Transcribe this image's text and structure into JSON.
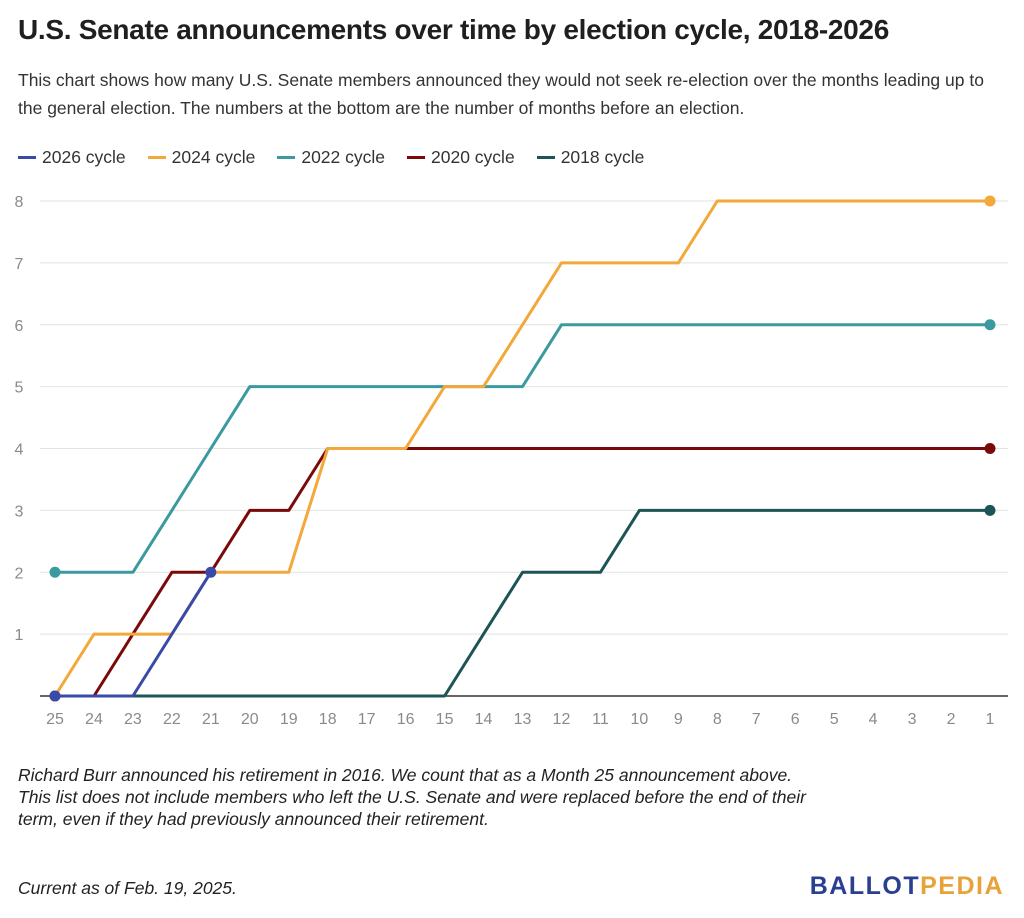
{
  "title": "U.S. Senate announcements over time by election cycle, 2018-2026",
  "subtitle": "This chart shows how many U.S. Senate members announced they would not seek re-election over the months leading up to the general election. The numbers at the bottom are the number of months before an election.",
  "notes": [
    "Richard Burr announced his retirement in 2016. We count that as a Month 25 announcement above.",
    "This list does not include members who left the U.S. Senate and were replaced before the end of their term, even if they had previously announced their retirement."
  ],
  "footer": "Current as of Feb. 19, 2025.",
  "logo": {
    "part1": "BALLOT",
    "part2": "PEDIA",
    "color1": "#2a3f8f",
    "color2": "#e8a23a"
  },
  "chart_data": {
    "type": "line",
    "xlabel": "",
    "ylabel": "",
    "categories": [
      "25",
      "24",
      "23",
      "22",
      "21",
      "20",
      "19",
      "18",
      "17",
      "16",
      "15",
      "14",
      "13",
      "12",
      "11",
      "10",
      "9",
      "8",
      "7",
      "6",
      "5",
      "4",
      "3",
      "2",
      "1"
    ],
    "ylim": [
      0,
      8
    ],
    "yticks": [
      "1",
      "2",
      "3",
      "4",
      "5",
      "6",
      "7",
      "8"
    ],
    "grid": true,
    "legend_position": "top",
    "series": [
      {
        "name": "2026 cycle",
        "color": "#3a4aa8",
        "values": [
          0,
          0,
          0,
          1,
          2,
          null,
          null,
          null,
          null,
          null,
          null,
          null,
          null,
          null,
          null,
          null,
          null,
          null,
          null,
          null,
          null,
          null,
          null,
          null,
          null
        ]
      },
      {
        "name": "2024 cycle",
        "color": "#f2a83a",
        "values": [
          0,
          1,
          1,
          1,
          2,
          2,
          2,
          4,
          4,
          4,
          5,
          5,
          6,
          7,
          7,
          7,
          7,
          8,
          8,
          8,
          8,
          8,
          8,
          8,
          8
        ]
      },
      {
        "name": "2022 cycle",
        "color": "#3a9a9f",
        "values": [
          2,
          2,
          2,
          3,
          4,
          5,
          5,
          5,
          5,
          5,
          5,
          5,
          5,
          6,
          6,
          6,
          6,
          6,
          6,
          6,
          6,
          6,
          6,
          6,
          6
        ]
      },
      {
        "name": "2020 cycle",
        "color": "#7a0a0a",
        "values": [
          0,
          0,
          1,
          2,
          2,
          3,
          3,
          4,
          4,
          4,
          4,
          4,
          4,
          4,
          4,
          4,
          4,
          4,
          4,
          4,
          4,
          4,
          4,
          4,
          4
        ]
      },
      {
        "name": "2018 cycle",
        "color": "#1c5457",
        "values": [
          0,
          0,
          0,
          0,
          0,
          0,
          0,
          0,
          0,
          0,
          0,
          1,
          2,
          2,
          2,
          3,
          3,
          3,
          3,
          3,
          3,
          3,
          3,
          3,
          3
        ]
      }
    ]
  }
}
